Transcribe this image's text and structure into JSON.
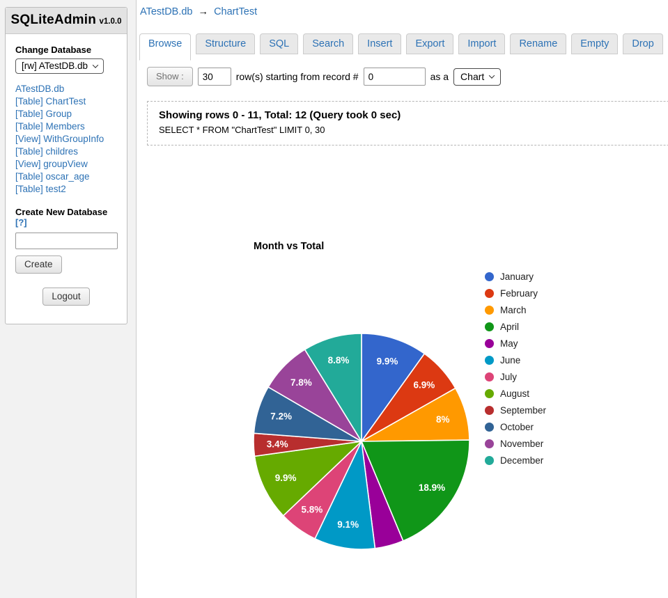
{
  "app": {
    "title": "SQLiteAdmin",
    "version": "v1.0.0"
  },
  "sidebar": {
    "change_db_label": "Change Database",
    "db_select_value": "[rw] ATestDB.db",
    "links": [
      "ATestDB.db",
      "[Table] ChartTest",
      "[Table] Group",
      "[Table] Members",
      "[View] WithGroupInfo",
      "[Table] childres",
      "[View] groupView",
      "[Table] oscar_age",
      "[Table] test2"
    ],
    "create_db_label": "Create New Database",
    "create_db_help": "[?]",
    "create_input_value": "",
    "create_button": "Create",
    "logout_button": "Logout"
  },
  "breadcrumb": {
    "db": "ATestDB.db",
    "arrow": "→",
    "table": "ChartTest"
  },
  "tabs": [
    {
      "label": "Browse",
      "active": true
    },
    {
      "label": "Structure",
      "active": false
    },
    {
      "label": "SQL",
      "active": false
    },
    {
      "label": "Search",
      "active": false
    },
    {
      "label": "Insert",
      "active": false
    },
    {
      "label": "Export",
      "active": false
    },
    {
      "label": "Import",
      "active": false
    },
    {
      "label": "Rename",
      "active": false
    },
    {
      "label": "Empty",
      "active": false
    },
    {
      "label": "Drop",
      "active": false
    }
  ],
  "controls": {
    "show_button": "Show :",
    "rows_value": "30",
    "rows_text": "row(s) starting from record #",
    "start_value": "0",
    "as_a_text": "as a",
    "view_select_value": "Chart"
  },
  "query_info": {
    "summary": "Showing rows 0 - 11, Total: 12 (Query took 0 sec)",
    "sql": "SELECT * FROM \"ChartTest\" LIMIT 0, 30"
  },
  "chart_data": {
    "type": "pie",
    "title": "Month vs Total",
    "categories": [
      "January",
      "February",
      "March",
      "April",
      "May",
      "June",
      "July",
      "August",
      "September",
      "October",
      "November",
      "December"
    ],
    "values": [
      9.9,
      6.9,
      8,
      18.9,
      4.3,
      9.1,
      5.8,
      9.9,
      3.4,
      7.2,
      7.8,
      8.8
    ],
    "slice_labels": [
      "9.9%",
      "6.9%",
      "8%",
      "18.9%",
      "",
      "9.1%",
      "5.8%",
      "9.9%",
      "3.4%",
      "7.2%",
      "7.8%",
      "8.8%"
    ],
    "colors": [
      "#3366cc",
      "#dc3912",
      "#ff9900",
      "#109618",
      "#990099",
      "#0099c6",
      "#dd4477",
      "#66aa00",
      "#b82e2e",
      "#316395",
      "#994499",
      "#22aa99"
    ],
    "legend_position": "right",
    "start_angle_deg": 0,
    "direction": "clockwise"
  }
}
